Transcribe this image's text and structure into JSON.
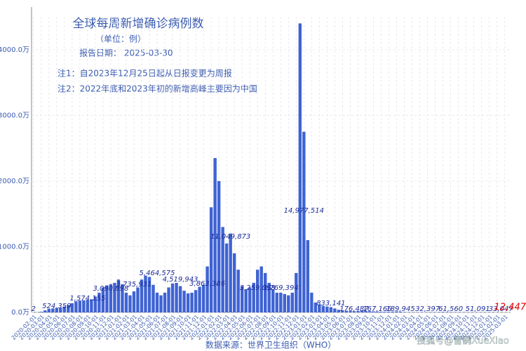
{
  "chart_data": {
    "type": "bar",
    "title": "全球每周新增确诊病例数",
    "subtitle": "（单位：例）",
    "report_date": "报告日期： 2025-03-30",
    "notes": [
      "注1：自2023年12月25日起从日报变更为周报",
      "注2：2022年底和2023年初的新增高峰主要因为中国"
    ],
    "xlabel": "数据来源：世界卫生组织（WHO）",
    "watermark": "搜狐号@雪鹞XueXiao",
    "color": "#3f63d3",
    "grid": true,
    "ylim": [
      0,
      4500
    ],
    "yticks": [
      {
        "value": 0,
        "label": "0.0万"
      },
      {
        "value": 1000,
        "label": "1000.0万"
      },
      {
        "value": 2000,
        "label": "2000.0万"
      },
      {
        "value": 3000,
        "label": "3000.0万"
      },
      {
        "value": 4000,
        "label": "4000.0万"
      }
    ],
    "categories": [
      "2020-02-01",
      null,
      "2020-03-01",
      null,
      "2020-04-01",
      null,
      "2020-05-01",
      null,
      "2020-06-01",
      null,
      "2020-07-01",
      null,
      "2020-08-01",
      null,
      "2020-09-01",
      null,
      "2020-10-01",
      null,
      "2020-11-01",
      null,
      "2020-12-01",
      null,
      "2021-01-01",
      null,
      "2021-02-01",
      null,
      "2021-03-01",
      null,
      "2021-04-01",
      null,
      "2021-05-01",
      null,
      "2021-06-01",
      null,
      "2021-07-01",
      null,
      "2021-08-01",
      null,
      "2021-09-01",
      null,
      "2021-10-01",
      null,
      "2021-11-01",
      null,
      "2021-12-01",
      null,
      "2022-01-01",
      null,
      "2022-02-01",
      null,
      "2022-03-01",
      null,
      "2022-04-01",
      null,
      "2022-05-01",
      null,
      "2022-06-01",
      null,
      "2022-07-01",
      null,
      "2022-08-01",
      null,
      "2022-09-01",
      null,
      "2022-10-01",
      null,
      "2022-11-01",
      null,
      "2022-12-01",
      null,
      "2023-01-01",
      null,
      "2023-02-01",
      null,
      "2023-03-01",
      null,
      "2023-04-01",
      null,
      "2023-05-01",
      null,
      "2023-06-01",
      null,
      "2023-07-01",
      null,
      "2023-08-01",
      null,
      "2023-09-01",
      null,
      "2023-10-01",
      null,
      "2023-11-01",
      null,
      "2023-12-01",
      null,
      "2024-01-01",
      null,
      "2024-02-01",
      null,
      "2024-03-01",
      null,
      "2024-04-01",
      null,
      "2024-05-01",
      null,
      "2024-06-01",
      null,
      "2024-07-01",
      null,
      "2024-08-01",
      null,
      "2024-09-01",
      null,
      "2024-10-01",
      null,
      "2024-11-01",
      null,
      "2024-12-01",
      null,
      "2025-01-01",
      null,
      "2025-02-01",
      null,
      "2025-03-01",
      null
    ],
    "values": [
      1,
      2,
      10,
      30,
      55,
      60,
      65,
      70,
      90,
      110,
      140,
      170,
      180,
      185,
      190,
      200,
      240,
      300,
      380,
      410,
      430,
      450,
      500,
      430,
      300,
      260,
      320,
      380,
      500,
      560,
      540,
      420,
      300,
      260,
      300,
      380,
      440,
      450,
      400,
      330,
      290,
      300,
      340,
      390,
      420,
      700,
      1600,
      2350,
      2000,
      1300,
      1050,
      1200,
      900,
      650,
      400,
      350,
      380,
      450,
      650,
      700,
      600,
      450,
      350,
      300,
      300,
      280,
      260,
      300,
      600,
      4400,
      2750,
      1100,
      300,
      150,
      120,
      100,
      90,
      80,
      60,
      40,
      30,
      25,
      20,
      18,
      20,
      25,
      22,
      18,
      15,
      12,
      10,
      9,
      10,
      12,
      15,
      10,
      6,
      4,
      3,
      3,
      2,
      2,
      3,
      4,
      5,
      6,
      7,
      6,
      5,
      4,
      4,
      3,
      3,
      3,
      2,
      2,
      2,
      2,
      2,
      2,
      1.5,
      1.2,
      1,
      0.5
    ],
    "annotations": [
      {
        "value": 0.0002,
        "label": "2"
      },
      {
        "value": 52.4359,
        "label": "524,359"
      },
      {
        "value": 157.4155,
        "label": "1,574,155"
      },
      {
        "value": 309.0898,
        "label": "3,090,898"
      },
      {
        "value": 373.5931,
        "label": "3,735,931"
      },
      {
        "value": 546.4575,
        "label": "5,464,575"
      },
      {
        "value": 451.9943,
        "label": "4,519,943"
      },
      {
        "value": 386.3386,
        "label": "3,863,386"
      },
      {
        "value": 1104.9873,
        "label": "11,049,873"
      },
      {
        "value": 325.9098,
        "label": "3,259,098"
      },
      {
        "value": 326.9394,
        "label": "3,269,394"
      },
      {
        "value": 1497.7514,
        "label": "14,977,514"
      },
      {
        "value": 83.3141,
        "label": "833,141"
      },
      {
        "value": 17.6487,
        "label": "176,487"
      },
      {
        "value": 16.7166,
        "label": "167,166"
      },
      {
        "value": 18.9945,
        "label": "189,945"
      },
      {
        "value": 3.2397,
        "label": "32,397"
      },
      {
        "value": 6.156,
        "label": "61,560"
      },
      {
        "value": 5.1091,
        "label": "51,091"
      },
      {
        "value": 3.3047,
        "label": "33,047"
      },
      {
        "value": 1.2447,
        "label": "12,447"
      }
    ]
  }
}
